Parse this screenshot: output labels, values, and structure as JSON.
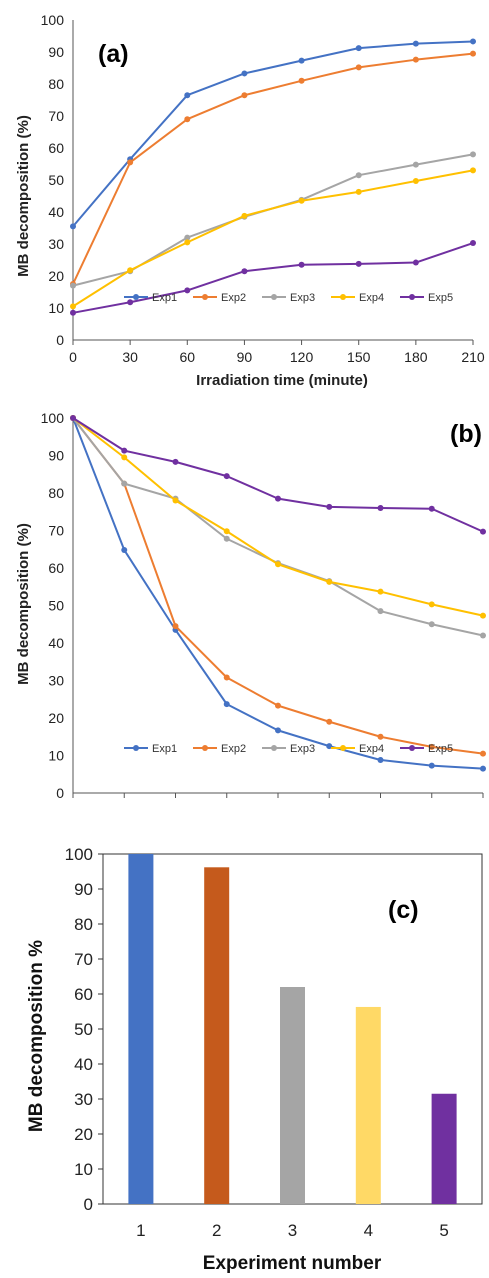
{
  "colors": {
    "Exp1": "#4472C4",
    "Exp2": "#ED7D31",
    "Exp3": "#A5A5A5",
    "Exp4": "#FFC000",
    "Exp5": "#7030A0",
    "bars": [
      "#4472C4",
      "#C55A1C",
      "#A5A5A5",
      "#FFD966",
      "#7030A0"
    ]
  },
  "chart_data": [
    {
      "type": "line",
      "panel_label": "(a)",
      "xlabel": "Irradiation time (minute)",
      "ylabel": "MB decomposition (%)",
      "x": [
        0,
        30,
        60,
        90,
        120,
        150,
        180,
        210
      ],
      "xticks": [
        "0",
        "30",
        "60",
        "90",
        "120",
        "150",
        "180",
        "210"
      ],
      "yticks": [
        "0",
        "10",
        "20",
        "30",
        "40",
        "50",
        "60",
        "70",
        "80",
        "90",
        "100"
      ],
      "ylim": [
        0,
        100
      ],
      "grid": false,
      "legend": "bottom",
      "series": [
        {
          "name": "Exp1",
          "values": [
            35.5,
            56.5,
            76.5,
            83.3,
            87.3,
            91.2,
            92.6,
            93.3
          ]
        },
        {
          "name": "Exp2",
          "values": [
            17.5,
            55.5,
            69.0,
            76.5,
            81.0,
            85.2,
            87.6,
            89.5
          ]
        },
        {
          "name": "Exp3",
          "values": [
            17.0,
            21.5,
            32.0,
            38.5,
            43.8,
            51.5,
            54.8,
            58.0
          ]
        },
        {
          "name": "Exp4",
          "values": [
            10.5,
            21.8,
            30.5,
            38.8,
            43.5,
            46.3,
            49.7,
            53.0
          ]
        },
        {
          "name": "Exp5",
          "values": [
            8.5,
            11.8,
            15.5,
            21.5,
            23.5,
            23.8,
            24.2,
            30.3
          ]
        }
      ]
    },
    {
      "type": "line",
      "panel_label": "(b)",
      "xlabel": "",
      "ylabel": "MB decomposition (%)",
      "x": [
        0,
        1,
        2,
        3,
        4,
        5,
        6,
        7,
        8
      ],
      "yticks": [
        "0",
        "10",
        "20",
        "30",
        "40",
        "50",
        "60",
        "70",
        "80",
        "90",
        "100"
      ],
      "ylim": [
        0,
        100
      ],
      "grid": false,
      "legend": "bottom",
      "series": [
        {
          "name": "Exp1",
          "values": [
            100,
            64.8,
            43.5,
            23.7,
            16.7,
            12.5,
            8.8,
            7.3,
            6.5
          ]
        },
        {
          "name": "Exp2",
          "values": [
            100,
            82.5,
            44.5,
            30.8,
            23.3,
            19.0,
            15.0,
            12.3,
            10.5
          ]
        },
        {
          "name": "Exp3",
          "values": [
            100,
            82.5,
            78.5,
            67.8,
            61.3,
            56.5,
            48.5,
            45.0,
            42.0
          ]
        },
        {
          "name": "Exp4",
          "values": [
            100,
            89.5,
            78.0,
            69.8,
            61.0,
            56.3,
            53.7,
            50.3,
            47.3
          ]
        },
        {
          "name": "Exp5",
          "values": [
            100,
            91.3,
            88.3,
            84.5,
            78.5,
            76.3,
            76.0,
            75.8,
            69.7
          ]
        }
      ]
    },
    {
      "type": "bar",
      "panel_label": "(c)",
      "xlabel": "Experiment number",
      "ylabel": "MB decomposition %",
      "categories": [
        "1",
        "2",
        "3",
        "4",
        "5"
      ],
      "values": [
        100,
        96.2,
        62.0,
        56.3,
        31.5
      ],
      "yticks": [
        "0",
        "10",
        "20",
        "30",
        "40",
        "50",
        "60",
        "70",
        "80",
        "90",
        "100"
      ],
      "ylim": [
        0,
        100
      ],
      "grid": false
    }
  ]
}
